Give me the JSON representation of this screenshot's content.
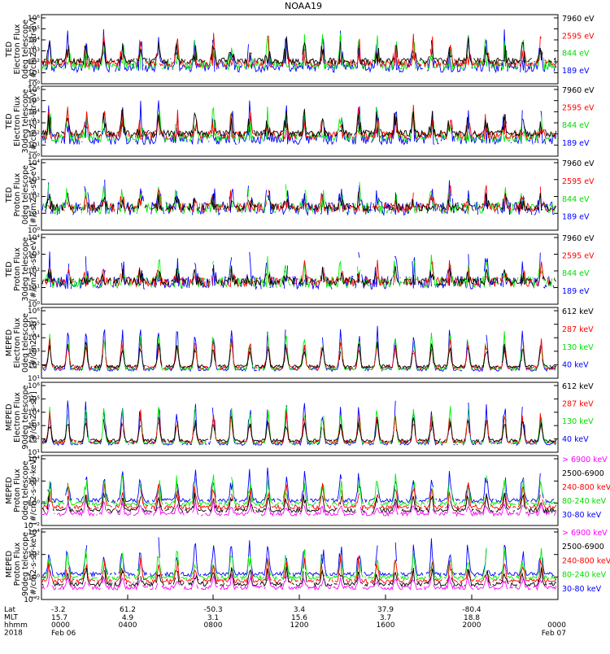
{
  "title": "NOAA19",
  "colors": {
    "blue": "#0000ff",
    "red": "#ff0000",
    "green": "#00ee00",
    "black": "#000000",
    "magenta": "#ff00ff"
  },
  "chart_data": [
    {
      "type": "line",
      "ylabel": [
        "TED",
        "Electron Flux",
        "0deg telescope",
        "[#/cm2-s-str-eV]"
      ],
      "yscale": "log",
      "y_ticks": [
        "10⁰",
        "10¹",
        "10²",
        "10³",
        "10⁴",
        "10⁵",
        "10⁶"
      ],
      "series": [
        {
          "name": "7960 eV",
          "color": "#000000"
        },
        {
          "name": "2595 eV",
          "color": "#ff0000"
        },
        {
          "name": "844 eV",
          "color": "#00ee00"
        },
        {
          "name": "189 eV",
          "color": "#0000ff"
        }
      ]
    },
    {
      "type": "line",
      "ylabel": [
        "TED",
        "Electron Flux",
        "30deg telescope",
        "[#/cm2-s-str-eV]"
      ],
      "yscale": "log",
      "y_ticks": [
        "10⁰",
        "10¹",
        "10²",
        "10³",
        "10⁴",
        "10⁵",
        "10⁶"
      ],
      "series": [
        {
          "name": "7960 eV",
          "color": "#000000"
        },
        {
          "name": "2595 eV",
          "color": "#ff0000"
        },
        {
          "name": "844 eV",
          "color": "#00ee00"
        },
        {
          "name": "189 eV",
          "color": "#0000ff"
        }
      ]
    },
    {
      "type": "line",
      "ylabel": [
        "TED",
        "Proton Flux",
        "0deg telescope",
        "[#/cm2-s-str-eV]"
      ],
      "yscale": "log",
      "y_ticks": [
        "10⁰",
        "10¹",
        "10²",
        "10³",
        "10⁴"
      ],
      "series": [
        {
          "name": "7960 eV",
          "color": "#000000"
        },
        {
          "name": "2595 eV",
          "color": "#ff0000"
        },
        {
          "name": "844 eV",
          "color": "#00ee00"
        },
        {
          "name": "189 eV",
          "color": "#0000ff"
        }
      ]
    },
    {
      "type": "line",
      "ylabel": [
        "TED",
        "Proton Flux",
        "30deg telescope",
        "[#/cm2-s-str-eV]"
      ],
      "yscale": "log",
      "y_ticks": [
        "10⁰",
        "10¹",
        "10²",
        "10³",
        "10⁴"
      ],
      "series": [
        {
          "name": "7960 eV",
          "color": "#000000"
        },
        {
          "name": "2595 eV",
          "color": "#ff0000"
        },
        {
          "name": "844 eV",
          "color": "#00ee00"
        },
        {
          "name": "189 eV",
          "color": "#0000ff"
        }
      ]
    },
    {
      "type": "line",
      "ylabel": [
        "MEPED",
        "Electron Flux",
        "0deg telescope",
        "[#/cm2-s-str]"
      ],
      "yscale": "log",
      "y_ticks": [
        "10¹",
        "10²",
        "10³",
        "10⁴",
        "10⁵",
        "10⁶"
      ],
      "series": [
        {
          "name": "612 keV",
          "color": "#000000"
        },
        {
          "name": "287 keV",
          "color": "#ff0000"
        },
        {
          "name": "130 keV",
          "color": "#00ee00"
        },
        {
          "name": "40 keV",
          "color": "#0000ff"
        }
      ]
    },
    {
      "type": "line",
      "ylabel": [
        "MEPED",
        "Electron Flux",
        "90deg telescope",
        "[#/cm2-s-str]"
      ],
      "yscale": "log",
      "y_ticks": [
        "10¹",
        "10²",
        "10³",
        "10⁴",
        "10⁵",
        "10⁶"
      ],
      "series": [
        {
          "name": "612 keV",
          "color": "#000000"
        },
        {
          "name": "287 keV",
          "color": "#ff0000"
        },
        {
          "name": "130 keV",
          "color": "#00ee00"
        },
        {
          "name": "40 keV",
          "color": "#0000ff"
        }
      ]
    },
    {
      "type": "line",
      "ylabel": [
        "MEPED",
        "Proton Flux",
        "0deg telescope",
        "[#/cm2-s-str-keV]"
      ],
      "yscale": "log",
      "y_ticks": [
        "10⁻²",
        "10⁰",
        "10²",
        "10⁴"
      ],
      "series": [
        {
          "name": "> 6900 keV",
          "color": "#ff00ff"
        },
        {
          "name": "2500-6900",
          "color": "#000000"
        },
        {
          "name": "240-800 keV",
          "color": "#ff0000"
        },
        {
          "name": "80-240 keV",
          "color": "#00ee00"
        },
        {
          "name": "30-80 keV",
          "color": "#0000ff"
        }
      ]
    },
    {
      "type": "line",
      "ylabel": [
        "MEPED",
        "Proton Flux",
        "90deg telescope",
        "[#/cm2-s-str-keV]"
      ],
      "yscale": "log",
      "y_ticks": [
        "10⁻²",
        "10⁰",
        "10²",
        "10⁴"
      ],
      "series": [
        {
          "name": "> 6900 keV",
          "color": "#ff00ff"
        },
        {
          "name": "2500-6900",
          "color": "#000000"
        },
        {
          "name": "240-800 keV",
          "color": "#ff0000"
        },
        {
          "name": "80-240 keV",
          "color": "#00ee00"
        },
        {
          "name": "30-80 keV",
          "color": "#0000ff"
        }
      ]
    }
  ],
  "x_axis": {
    "row_labels": [
      "Lat",
      "MLT",
      "hhmm",
      "2018"
    ],
    "ticks": [
      {
        "lat": "-3.2",
        "mlt": "15.7",
        "hhmm": "0000",
        "date": "Feb 06"
      },
      {
        "lat": "61.2",
        "mlt": "4.9",
        "hhmm": "0400",
        "date": ""
      },
      {
        "lat": "-50.3",
        "mlt": "3.1",
        "hhmm": "0800",
        "date": ""
      },
      {
        "lat": "3.4",
        "mlt": "15.6",
        "hhmm": "1200",
        "date": ""
      },
      {
        "lat": "37.9",
        "mlt": "3.7",
        "hhmm": "1600",
        "date": ""
      },
      {
        "lat": "-80.4",
        "mlt": "18.8",
        "hhmm": "2000",
        "date": ""
      },
      {
        "lat": "",
        "mlt": "",
        "hhmm": "0000",
        "date": "Feb 07"
      }
    ]
  }
}
